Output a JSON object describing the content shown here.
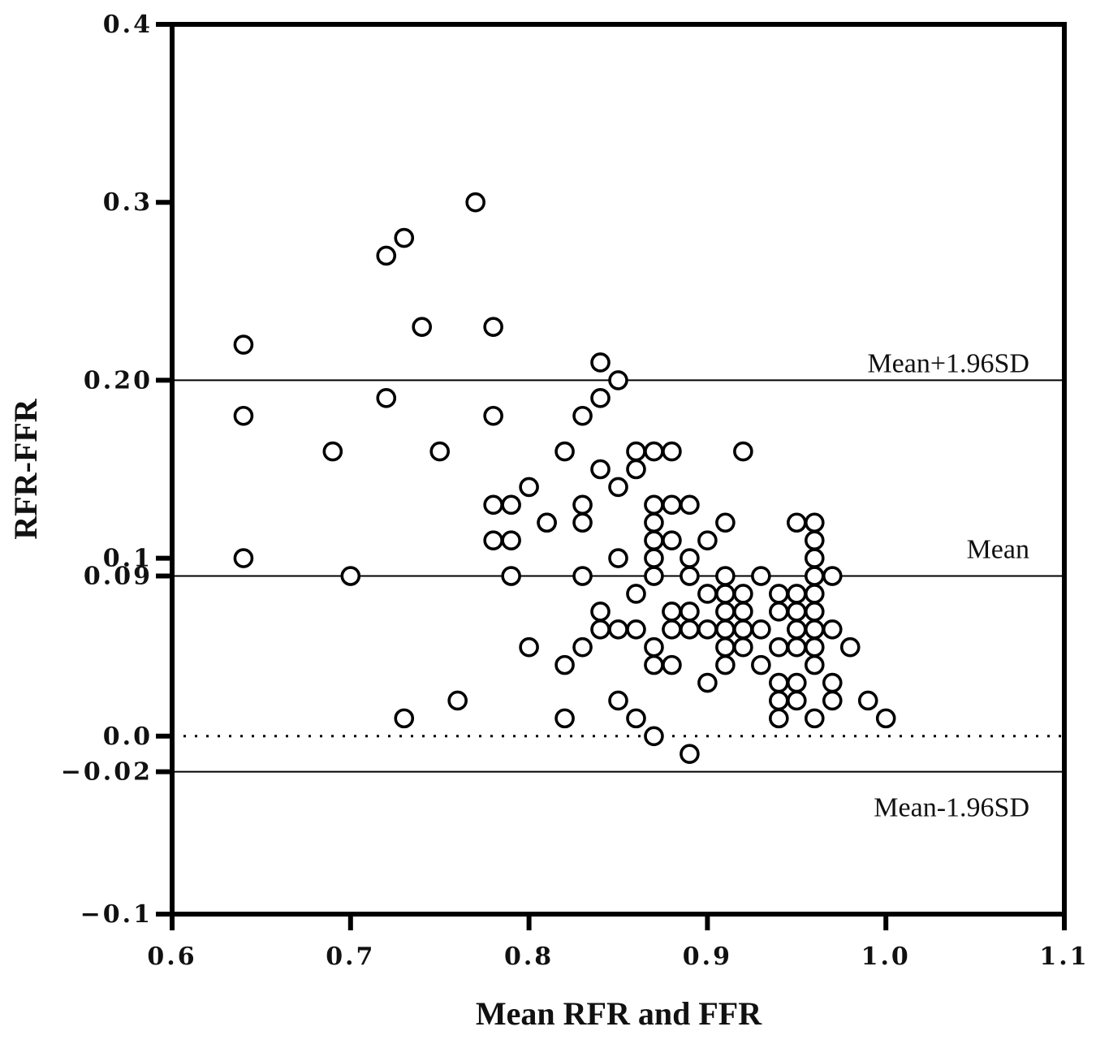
{
  "chart_data": {
    "type": "scatter",
    "title": "",
    "xlabel": "Mean RFR and FFR",
    "ylabel": "RFR-FFR",
    "xlim": [
      0.6,
      1.1
    ],
    "ylim": [
      -0.1,
      0.4
    ],
    "x_ticks": [
      0.6,
      0.7,
      0.8,
      0.9,
      1.0,
      1.1
    ],
    "x_tick_labels": [
      "0.6",
      "0.7",
      "0.8",
      "0.9",
      "1.0",
      "1.1"
    ],
    "y_ticks": [
      -0.1,
      -0.02,
      0.0,
      0.09,
      0.1,
      0.2,
      0.3,
      0.4
    ],
    "y_tick_labels": [
      "−0.1",
      "−0.02",
      "0.0",
      "0.09",
      "0.1",
      "0.20",
      "0.3",
      "0.4"
    ],
    "grid": false,
    "reference_lines": [
      {
        "label": "Mean+1.96SD",
        "value": 0.2,
        "style": "solid"
      },
      {
        "label": "Mean",
        "value": 0.09,
        "style": "solid"
      },
      {
        "label": "",
        "value": 0.0,
        "style": "dotted"
      },
      {
        "label": "Mean-1.96SD",
        "value": -0.02,
        "style": "solid"
      }
    ],
    "series": [
      {
        "marker": "open-circle",
        "points": [
          [
            0.64,
            0.22
          ],
          [
            0.64,
            0.18
          ],
          [
            0.64,
            0.1
          ],
          [
            0.69,
            0.16
          ],
          [
            0.7,
            0.09
          ],
          [
            0.72,
            0.27
          ],
          [
            0.73,
            0.28
          ],
          [
            0.72,
            0.19
          ],
          [
            0.74,
            0.23
          ],
          [
            0.73,
            0.01
          ],
          [
            0.75,
            0.16
          ],
          [
            0.76,
            0.02
          ],
          [
            0.77,
            0.3
          ],
          [
            0.78,
            0.23
          ],
          [
            0.78,
            0.18
          ],
          [
            0.78,
            0.13
          ],
          [
            0.78,
            0.11
          ],
          [
            0.79,
            0.13
          ],
          [
            0.79,
            0.11
          ],
          [
            0.79,
            0.09
          ],
          [
            0.8,
            0.14
          ],
          [
            0.8,
            0.05
          ],
          [
            0.81,
            0.12
          ],
          [
            0.81,
            0.12
          ],
          [
            0.82,
            0.16
          ],
          [
            0.82,
            0.04
          ],
          [
            0.82,
            0.01
          ],
          [
            0.83,
            0.18
          ],
          [
            0.83,
            0.13
          ],
          [
            0.83,
            0.12
          ],
          [
            0.83,
            0.09
          ],
          [
            0.83,
            0.05
          ],
          [
            0.84,
            0.21
          ],
          [
            0.84,
            0.19
          ],
          [
            0.84,
            0.15
          ],
          [
            0.84,
            0.07
          ],
          [
            0.84,
            0.06
          ],
          [
            0.85,
            0.2
          ],
          [
            0.85,
            0.14
          ],
          [
            0.85,
            0.1
          ],
          [
            0.85,
            0.06
          ],
          [
            0.85,
            0.02
          ],
          [
            0.86,
            0.16
          ],
          [
            0.86,
            0.15
          ],
          [
            0.86,
            0.08
          ],
          [
            0.86,
            0.06
          ],
          [
            0.86,
            0.01
          ],
          [
            0.87,
            0.16
          ],
          [
            0.87,
            0.13
          ],
          [
            0.87,
            0.12
          ],
          [
            0.87,
            0.11
          ],
          [
            0.87,
            0.1
          ],
          [
            0.87,
            0.09
          ],
          [
            0.87,
            0.05
          ],
          [
            0.87,
            0.04
          ],
          [
            0.87,
            0.0
          ],
          [
            0.88,
            0.16
          ],
          [
            0.88,
            0.13
          ],
          [
            0.88,
            0.11
          ],
          [
            0.88,
            0.07
          ],
          [
            0.88,
            0.06
          ],
          [
            0.88,
            0.04
          ],
          [
            0.89,
            0.13
          ],
          [
            0.89,
            0.1
          ],
          [
            0.89,
            0.09
          ],
          [
            0.89,
            0.07
          ],
          [
            0.89,
            0.06
          ],
          [
            0.89,
            -0.01
          ],
          [
            0.9,
            0.11
          ],
          [
            0.9,
            0.08
          ],
          [
            0.9,
            0.06
          ],
          [
            0.9,
            0.03
          ],
          [
            0.91,
            0.12
          ],
          [
            0.91,
            0.09
          ],
          [
            0.91,
            0.08
          ],
          [
            0.91,
            0.07
          ],
          [
            0.91,
            0.06
          ],
          [
            0.91,
            0.05
          ],
          [
            0.91,
            0.04
          ],
          [
            0.92,
            0.16
          ],
          [
            0.92,
            0.08
          ],
          [
            0.92,
            0.07
          ],
          [
            0.92,
            0.06
          ],
          [
            0.92,
            0.05
          ],
          [
            0.93,
            0.09
          ],
          [
            0.93,
            0.06
          ],
          [
            0.93,
            0.04
          ],
          [
            0.94,
            0.08
          ],
          [
            0.94,
            0.07
          ],
          [
            0.94,
            0.05
          ],
          [
            0.94,
            0.03
          ],
          [
            0.94,
            0.02
          ],
          [
            0.94,
            0.01
          ],
          [
            0.95,
            0.12
          ],
          [
            0.95,
            0.08
          ],
          [
            0.95,
            0.07
          ],
          [
            0.95,
            0.06
          ],
          [
            0.95,
            0.05
          ],
          [
            0.95,
            0.03
          ],
          [
            0.95,
            0.02
          ],
          [
            0.96,
            0.12
          ],
          [
            0.96,
            0.11
          ],
          [
            0.96,
            0.1
          ],
          [
            0.96,
            0.09
          ],
          [
            0.96,
            0.08
          ],
          [
            0.96,
            0.07
          ],
          [
            0.96,
            0.06
          ],
          [
            0.96,
            0.05
          ],
          [
            0.96,
            0.04
          ],
          [
            0.96,
            0.01
          ],
          [
            0.97,
            0.09
          ],
          [
            0.97,
            0.06
          ],
          [
            0.97,
            0.03
          ],
          [
            0.97,
            0.02
          ],
          [
            0.98,
            0.05
          ],
          [
            0.99,
            0.02
          ],
          [
            1.0,
            0.01
          ]
        ]
      }
    ]
  }
}
